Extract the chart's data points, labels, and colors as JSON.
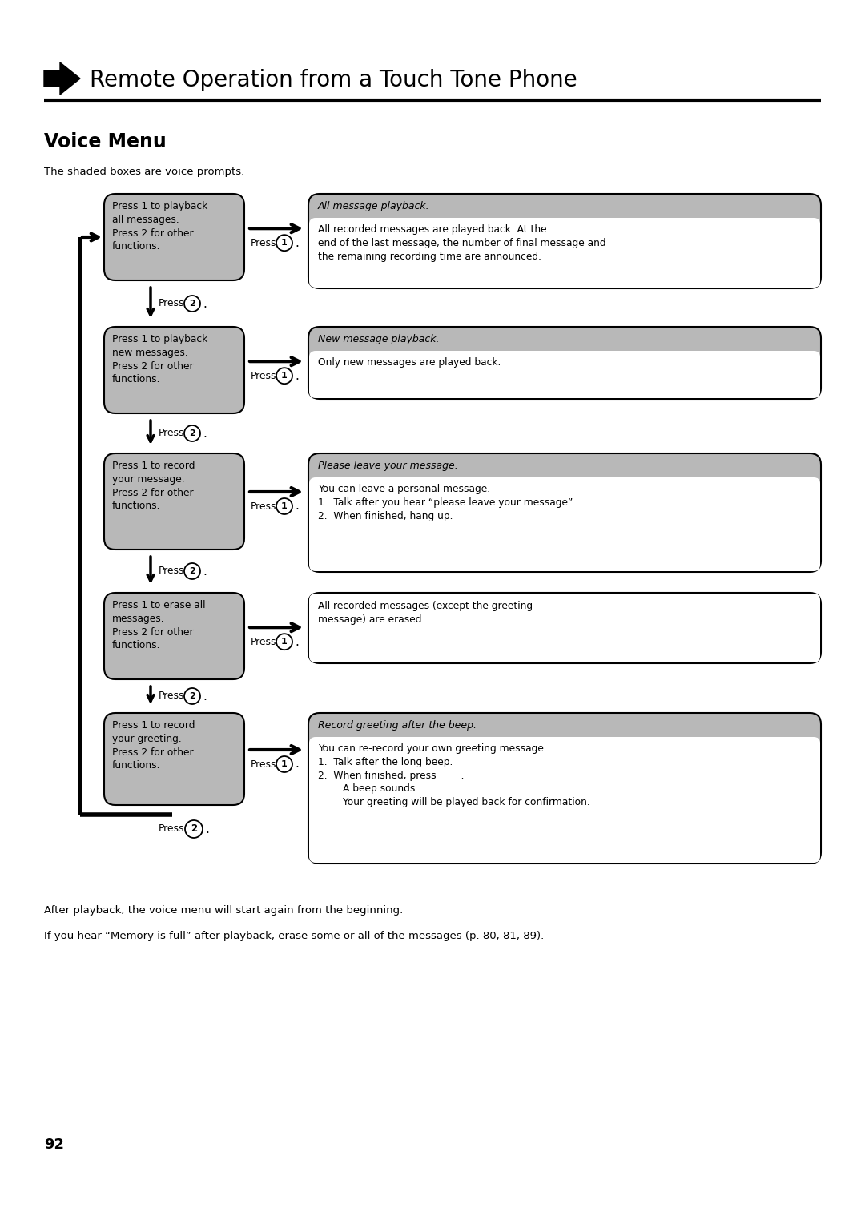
{
  "title": "Remote Operation from a Touch Tone Phone",
  "section": "Voice Menu",
  "subtitle": "The shaded boxes are voice prompts.",
  "bg_color": "#ffffff",
  "box_fill": "#b8b8b8",
  "box_border": "#000000",
  "rows": [
    {
      "left_text": "Press 1 to playback\nall messages.\nPress 2 for other\nfunctions.",
      "right_header": "All message playback.",
      "right_body": "All recorded messages are played back. At the\nend of the last message, the number of final message and\nthe remaining recording time are announced."
    },
    {
      "left_text": "Press 1 to playback\nnew messages.\nPress 2 for other\nfunctions.",
      "right_header": "New message playback.",
      "right_body": "Only new messages are played back."
    },
    {
      "left_text": "Press 1 to record\nyour message.\nPress 2 for other\nfunctions.",
      "right_header": "Please leave your message.",
      "right_body": "You can leave a personal message.\n1.  Talk after you hear “please leave your message”\n2.  When finished, hang up."
    },
    {
      "left_text": "Press 1 to erase all\nmessages.\nPress 2 for other\nfunctions.",
      "right_header": "",
      "right_body": "All recorded messages (except the greeting\nmessage) are erased."
    },
    {
      "left_text": "Press 1 to record\nyour greeting.\nPress 2 for other\nfunctions.",
      "right_header": "Record greeting after the beep.",
      "right_body": "You can re-record your own greeting message.\n1.  Talk after the long beep.\n2.  When finished, press        .\n        A beep sounds.\n        Your greeting will be played back for confirmation."
    }
  ],
  "footer1": "After playback, the voice menu will start again from the beginning.",
  "footer2": "If you hear “Memory is full” after playback, erase some or all of the messages (p. 80, 81, 89).",
  "page_num": "92"
}
